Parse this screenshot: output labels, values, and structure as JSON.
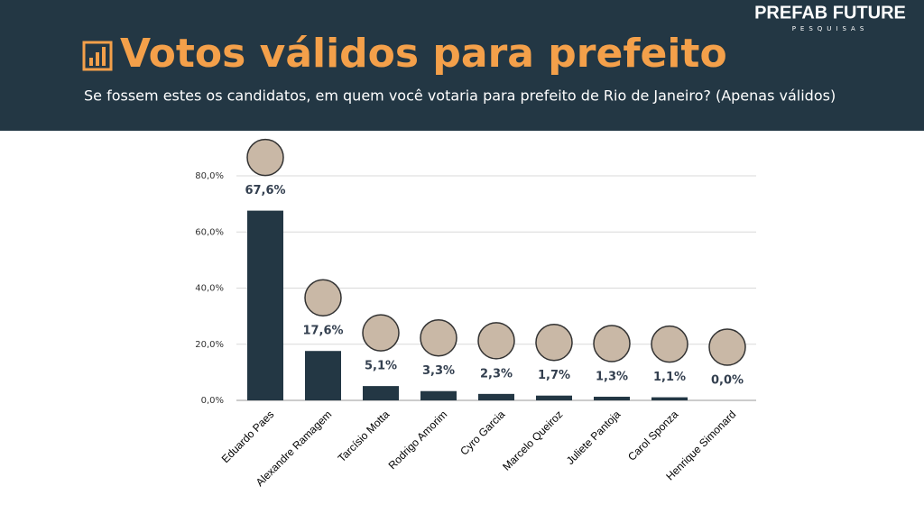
{
  "logo": {
    "name": "PREFAB FUTURE",
    "tagline": "PESQUISAS"
  },
  "chart_data": {
    "type": "bar",
    "title": "Votos válidos para prefeito",
    "subtitle": "Se fossem estes os candidatos, em quem você votaria para prefeito de Rio de Janeiro? (Apenas válidos)",
    "categories": [
      "Eduardo Paes",
      "Alexandre Ramagem",
      "Tarcísio Motta",
      "Rodrigo Amorim",
      "Cyro Garcia",
      "Marcelo Queiroz",
      "Juliete Pantoja",
      "Carol Sponza",
      "Henrique Simonard"
    ],
    "values": [
      67.6,
      17.6,
      5.1,
      3.3,
      2.3,
      1.7,
      1.3,
      1.1,
      0.0
    ],
    "value_labels": [
      "67,6%",
      "17,6%",
      "5,1%",
      "3,3%",
      "2,3%",
      "1,7%",
      "1,3%",
      "1,1%",
      "0,0%"
    ],
    "color": "#233744",
    "ylim": [
      0,
      80
    ],
    "yticks": [
      {
        "value": 0,
        "label": "0,0%"
      },
      {
        "value": 20,
        "label": "20,0%"
      },
      {
        "value": 40,
        "label": "40,0%"
      },
      {
        "value": 60,
        "label": "60,0%"
      },
      {
        "value": 80,
        "label": "80,0%"
      }
    ],
    "grid": true
  }
}
